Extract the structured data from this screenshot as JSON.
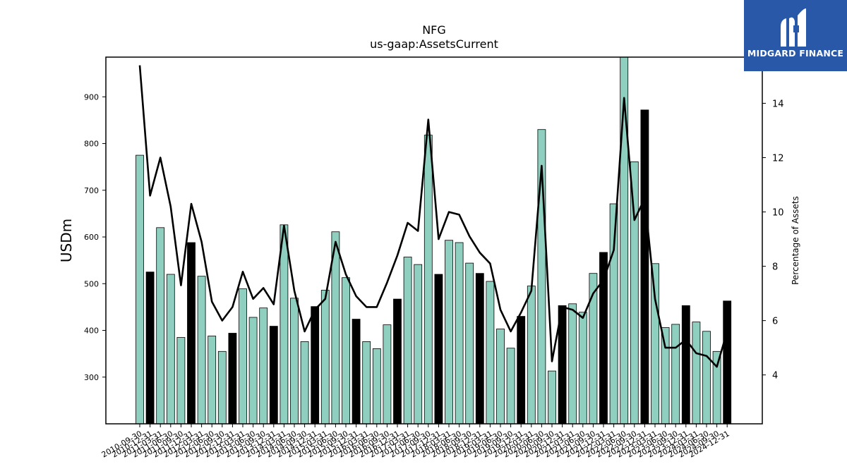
{
  "chart_data": {
    "type": "bar",
    "title": "NFG",
    "subtitle": "us-gaap:AssetsCurrent",
    "ylabel": "USDm",
    "y2label": "Percentage of Assets",
    "ylim": [
      200,
      985
    ],
    "y2lim": [
      2.2,
      15.7
    ],
    "yticks": [
      300,
      400,
      500,
      600,
      700,
      800,
      900
    ],
    "y2ticks": [
      4,
      6,
      8,
      10,
      12,
      14
    ],
    "colors": {
      "bar": "#8ecfc0",
      "bar_q4": "#000000",
      "line": "#000000"
    },
    "categories": [
      "2010-09-30",
      "2010-12-31",
      "2011-03-31",
      "2011-06-30",
      "2011-09-30",
      "2011-12-31",
      "2012-03-31",
      "2012-06-30",
      "2012-09-30",
      "2012-12-31",
      "2013-03-31",
      "2013-06-30",
      "2013-09-30",
      "2013-12-31",
      "2014-03-31",
      "2014-06-30",
      "2014-09-30",
      "2014-12-31",
      "2015-03-31",
      "2015-06-30",
      "2015-09-30",
      "2015-12-31",
      "2016-03-31",
      "2016-06-30",
      "2016-09-30",
      "2016-12-31",
      "2017-03-31",
      "2017-06-30",
      "2017-09-30",
      "2017-12-31",
      "2018-03-31",
      "2018-06-30",
      "2018-09-30",
      "2018-12-31",
      "2019-03-31",
      "2019-06-30",
      "2019-09-30",
      "2019-12-31",
      "2020-03-31",
      "2020-06-30",
      "2020-09-30",
      "2020-12-31",
      "2021-03-31",
      "2021-06-30",
      "2021-09-30",
      "2021-12-31",
      "2022-03-31",
      "2022-06-30",
      "2022-09-30",
      "2022-12-31",
      "2023-03-31",
      "2023-06-30",
      "2023-09-30",
      "2023-12-31",
      "2024-03-31",
      "2024-06-30",
      "2024-09-30",
      "2024-12-31"
    ],
    "series": [
      {
        "type": "bar",
        "axis": "left",
        "values": [
          775,
          525,
          620,
          520,
          385,
          588,
          516,
          388,
          355,
          394,
          489,
          428,
          448,
          409,
          626,
          469,
          376,
          451,
          486,
          611,
          513,
          424,
          376,
          361,
          412,
          467,
          557,
          541,
          818,
          520,
          593,
          588,
          544,
          522,
          505,
          403,
          362,
          430,
          495,
          830,
          313,
          453,
          457,
          439,
          522,
          567,
          671,
          985,
          761,
          872,
          543,
          406,
          413,
          453,
          418,
          398,
          355,
          463
        ]
      },
      {
        "type": "line",
        "axis": "right",
        "values": [
          15.4,
          10.6,
          12.0,
          10.2,
          7.3,
          10.3,
          8.9,
          6.7,
          6.0,
          6.5,
          7.8,
          6.8,
          7.2,
          6.6,
          9.5,
          7.1,
          5.6,
          6.4,
          6.8,
          8.9,
          7.7,
          6.9,
          6.5,
          6.5,
          7.4,
          8.4,
          9.6,
          9.3,
          13.4,
          9.0,
          10.0,
          9.9,
          9.1,
          8.5,
          8.1,
          6.4,
          5.6,
          6.3,
          7.1,
          11.7,
          4.5,
          6.5,
          6.4,
          6.1,
          7.0,
          7.5,
          8.6,
          14.2,
          9.7,
          10.5,
          6.8,
          5.0,
          5.0,
          5.3,
          4.8,
          4.7,
          4.3,
          5.6
        ]
      }
    ],
    "grid": false,
    "legend": "none"
  },
  "logo": {
    "name": "midgard-finance-logo",
    "text": "MIDGARD FINANCE"
  }
}
